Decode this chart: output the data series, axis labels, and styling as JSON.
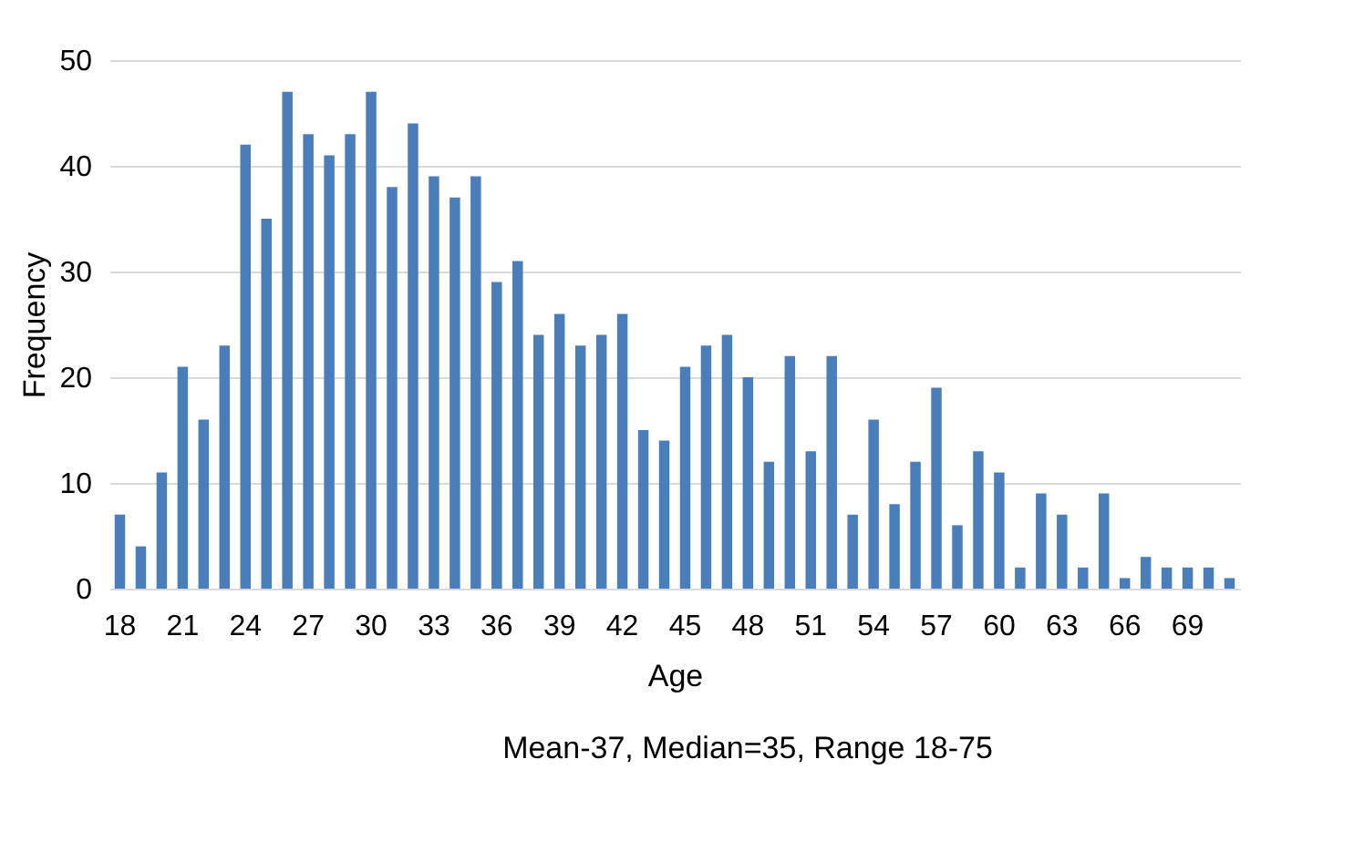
{
  "chart_data": {
    "type": "bar",
    "xlabel": "Age",
    "ylabel": "Frequency",
    "categories": [
      "18",
      null,
      null,
      "21",
      null,
      null,
      "24",
      null,
      null,
      "27",
      null,
      null,
      "30",
      null,
      null,
      "33",
      null,
      null,
      "36",
      null,
      null,
      "39",
      null,
      null,
      "42",
      null,
      null,
      "45",
      null,
      null,
      "48",
      null,
      null,
      "51",
      null,
      null,
      "54",
      null,
      null,
      "57",
      null,
      null,
      "60",
      null,
      null,
      "63",
      null,
      null,
      "66",
      null,
      null,
      "69",
      null,
      null
    ],
    "values": [
      7,
      4,
      11,
      21,
      16,
      23,
      42,
      35,
      47,
      43,
      41,
      43,
      47,
      38,
      44,
      39,
      37,
      39,
      29,
      31,
      24,
      26,
      23,
      24,
      26,
      15,
      14,
      21,
      23,
      24,
      20,
      12,
      22,
      13,
      22,
      7,
      16,
      8,
      12,
      19,
      6,
      13,
      11,
      2,
      9,
      7,
      2,
      9,
      1,
      3,
      2,
      2,
      2,
      1
    ],
    "color": "#4a7ebb",
    "ylim": [
      0,
      50
    ],
    "yticks": [
      0,
      10,
      20,
      30,
      40,
      50
    ],
    "grid": "y",
    "annotations": [
      "Mean-37, Median=35, Range 18-75"
    ]
  }
}
